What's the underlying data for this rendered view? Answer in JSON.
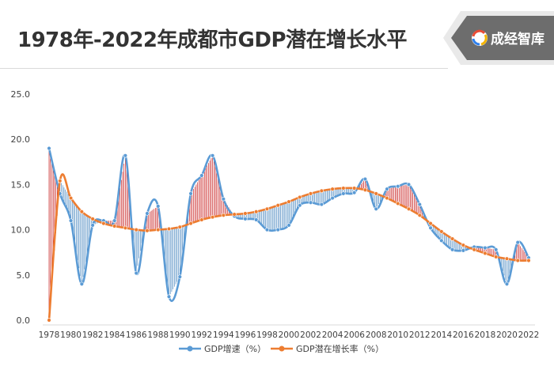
{
  "header": {
    "title": "1978年-2022年成都市GDP潜在增长水平",
    "logo_text": "成经智库",
    "logo_icon": "swirl-logo-icon"
  },
  "colors": {
    "gdp_growth": "#5b9bd5",
    "potential_growth": "#ed7d31",
    "gap_above": "#c00000",
    "gap_below": "#2e75b6",
    "logo_band": "#6d6d6d"
  },
  "chart_data": {
    "type": "line",
    "xlabel": "",
    "ylabel": "",
    "ylim": [
      0,
      25
    ],
    "yticks": [
      "0.0",
      "5.0",
      "10.0",
      "15.0",
      "20.0",
      "25.0"
    ],
    "xticks": [
      "1978",
      "1980",
      "1982",
      "1984",
      "1986",
      "1988",
      "1990",
      "1992",
      "1994",
      "1996",
      "1998",
      "2000",
      "2002",
      "2004",
      "2006",
      "2008",
      "2010",
      "2012",
      "2014",
      "2016",
      "2018",
      "2020",
      "2022"
    ],
    "grid": false,
    "legend_position": "bottom",
    "x": [
      1978,
      1979,
      1980,
      1981,
      1982,
      1983,
      1984,
      1985,
      1986,
      1987,
      1988,
      1989,
      1990,
      1991,
      1992,
      1993,
      1994,
      1995,
      1996,
      1997,
      1998,
      1999,
      2000,
      2001,
      2002,
      2003,
      2004,
      2005,
      2006,
      2007,
      2008,
      2009,
      2010,
      2011,
      2012,
      2013,
      2014,
      2015,
      2016,
      2017,
      2018,
      2019,
      2020,
      2021,
      2022
    ],
    "series": [
      {
        "name": "GDP增速（%）",
        "values": [
          19.0,
          14.0,
          11.0,
          4.0,
          10.5,
          11.0,
          11.0,
          18.2,
          5.2,
          11.8,
          12.6,
          2.6,
          4.8,
          14.0,
          16.0,
          18.2,
          13.4,
          11.5,
          11.2,
          11.1,
          10.0,
          10.0,
          10.5,
          12.7,
          13.0,
          12.8,
          13.5,
          14.0,
          14.1,
          15.6,
          12.3,
          14.5,
          14.8,
          15.0,
          12.8,
          10.2,
          8.8,
          7.8,
          7.7,
          8.1,
          8.0,
          7.8,
          4.0,
          8.6,
          6.9
        ]
      },
      {
        "name": "GDP潜在增长率（%）",
        "values": [
          0.0,
          15.4,
          13.5,
          12.0,
          11.2,
          10.7,
          10.4,
          10.2,
          10.0,
          9.9,
          10.0,
          10.1,
          10.3,
          10.7,
          11.1,
          11.4,
          11.6,
          11.7,
          11.8,
          12.0,
          12.3,
          12.7,
          13.1,
          13.6,
          14.0,
          14.3,
          14.5,
          14.6,
          14.6,
          14.4,
          14.0,
          13.5,
          12.9,
          12.3,
          11.6,
          10.7,
          9.8,
          9.0,
          8.3,
          7.8,
          7.4,
          7.0,
          6.8,
          6.6,
          6.6
        ]
      }
    ]
  }
}
